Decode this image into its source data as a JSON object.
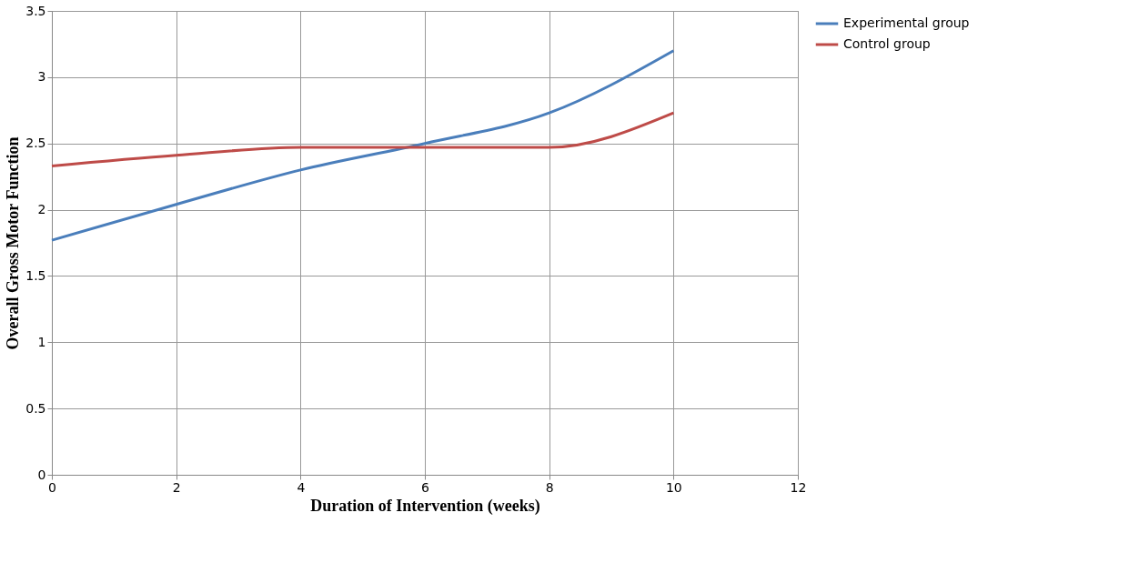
{
  "chart_data": {
    "type": "line",
    "xlabel": "Duration of Intervention (weeks)",
    "ylabel": "Overall Gross Motor Function",
    "x": [
      0,
      2,
      4,
      6,
      8,
      10
    ],
    "series": [
      {
        "name": "Experimental group",
        "color": "#4a7ebb",
        "values": [
          1.77,
          2.04,
          2.3,
          2.5,
          2.73,
          3.2
        ]
      },
      {
        "name": "Control group",
        "color": "#be4b48",
        "values": [
          2.33,
          2.41,
          2.47,
          2.47,
          2.47,
          2.73
        ]
      }
    ],
    "xlim": [
      0,
      12
    ],
    "xticks": [
      0,
      2,
      4,
      6,
      8,
      10,
      12
    ],
    "ylim": [
      0,
      3.5
    ],
    "yticks": [
      0,
      0.5,
      1,
      1.5,
      2,
      2.5,
      3,
      3.5
    ],
    "grid": true,
    "legend": "right",
    "marker": "none",
    "line_style": "solid"
  }
}
